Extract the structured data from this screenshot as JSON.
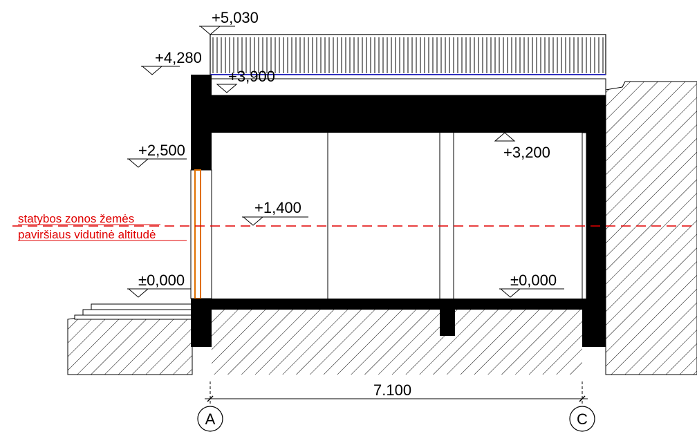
{
  "levels": {
    "top_railing": "+5,030",
    "parapet": "+4,280",
    "roof_top": "+3,900",
    "ceiling": "+3,200",
    "window_top": "+2,500",
    "mid": "+1,400",
    "floor_left": "±0,000",
    "floor_right": "±0,000"
  },
  "ground_note": {
    "line1": "statybos zonos žemės",
    "line2": "paviršiaus vidutinė altitudė"
  },
  "dimension": {
    "span": "7.100"
  },
  "axes": {
    "left": "A",
    "right": "C"
  },
  "colors": {
    "structure": "#000000",
    "ground_line": "#e00000",
    "window": "#e07000",
    "hatch": "#000000"
  }
}
